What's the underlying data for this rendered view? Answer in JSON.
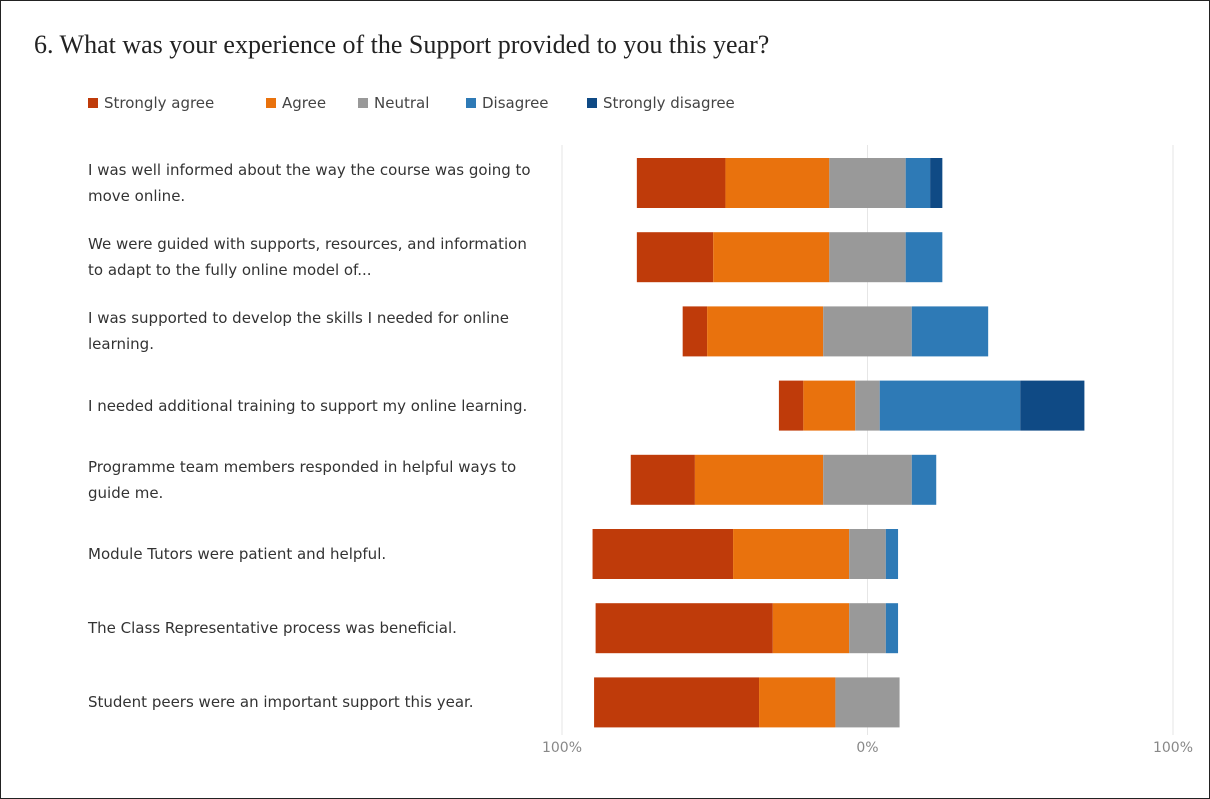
{
  "chart_data": {
    "type": "diverging-bar",
    "title": "6. What was your experience of the Support provided to you this year?",
    "categories": [
      "I was well informed about the way the course was going to move online.",
      "We were guided with supports, resources, and information to adapt to the fully online model of...",
      "I was supported to develop the skills I needed for online learning.",
      "I needed additional training to support my online learning.",
      "Programme team members responded in helpful ways to guide me.",
      "Module Tutors were patient and helpful.",
      "The Class Representative process was beneficial.",
      "Student peers were an important support this year."
    ],
    "series": [
      {
        "name": "Strongly agree",
        "color": "#bf3b0a",
        "values": [
          29,
          25,
          8,
          8,
          21,
          46,
          58,
          54
        ]
      },
      {
        "name": "Agree",
        "color": "#e9720d",
        "values": [
          34,
          38,
          38,
          17,
          42,
          38,
          25,
          25
        ]
      },
      {
        "name": "Neutral",
        "color": "#999999",
        "values": [
          25,
          25,
          29,
          8,
          29,
          12,
          12,
          21
        ]
      },
      {
        "name": "Disagree",
        "color": "#2e7ab6",
        "values": [
          8,
          12,
          25,
          46,
          8,
          4,
          4,
          0
        ]
      },
      {
        "name": "Strongly disagree",
        "color": "#0f4a85",
        "values": [
          4,
          0,
          0,
          21,
          0,
          0,
          0,
          0
        ]
      }
    ],
    "xlim": [
      -100,
      100
    ],
    "xticks": [
      {
        "value": -100,
        "label": "100%"
      },
      {
        "value": 0,
        "label": "0%"
      },
      {
        "value": 100,
        "label": "100%"
      }
    ],
    "grid": true
  }
}
